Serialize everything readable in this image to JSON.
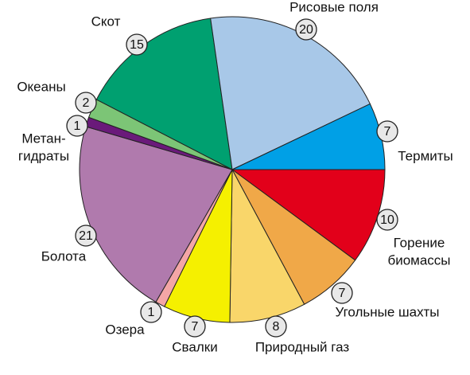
{
  "chart_data": {
    "type": "pie",
    "categories": [
      "Горение биомассы",
      "Угольные шахты",
      "Природный газ",
      "Свалки",
      "Озера",
      "Болота",
      "Метан-гидраты",
      "Океаны",
      "Скот",
      "Рисовые поля",
      "Термиты"
    ],
    "label_lines": [
      [
        "Горение",
        "биомассы"
      ],
      [
        "Угольные шахты"
      ],
      [
        "Природный газ"
      ],
      [
        "Свалки"
      ],
      [
        "Озера"
      ],
      [
        "Болота"
      ],
      [
        "Метан-",
        "гидраты"
      ],
      [
        "Океаны"
      ],
      [
        "Скот"
      ],
      [
        "Рисовые поля"
      ],
      [
        "Термиты"
      ]
    ],
    "values": [
      10,
      7,
      8,
      7,
      1,
      21,
      1,
      2,
      15,
      20,
      7
    ],
    "colors": [
      "#e2001a",
      "#f0a848",
      "#f9d66a",
      "#f5f000",
      "#f4a6a6",
      "#b07aad",
      "#6a1a7a",
      "#7cc576",
      "#00a070",
      "#a8c8e8",
      "#00a0e6"
    ]
  }
}
